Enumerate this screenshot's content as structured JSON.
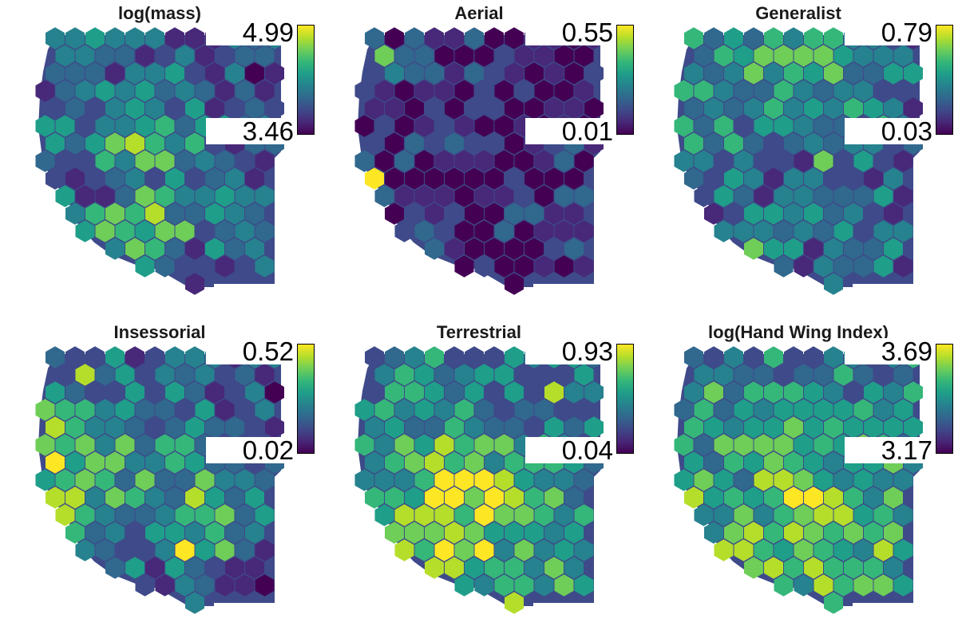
{
  "palette": [
    "#440154",
    "#482878",
    "#3e4a89",
    "#31688e",
    "#26828e",
    "#1f9e89",
    "#35b779",
    "#6ece58",
    "#b5de2b",
    "#fde725"
  ],
  "panels": [
    {
      "title": "log(mass)",
      "legend_max": "4.99",
      "legend_min": "3.46",
      "highlights": [
        [
          3,
          9,
          1
        ],
        [
          2,
          9,
          1
        ],
        [
          6,
          8,
          2
        ],
        [
          4,
          9,
          3
        ]
      ]
    },
    {
      "title": "Aerial",
      "legend_max": "0.55",
      "legend_min": "0.01",
      "highlights": [
        [
          1,
          1,
          7
        ],
        [
          1,
          8,
          9
        ]
      ]
    },
    {
      "title": "Generalist",
      "legend_max": "0.79",
      "legend_min": "0.03",
      "highlights": [
        [
          4,
          12,
          7
        ],
        [
          7,
          7,
          7
        ]
      ]
    },
    {
      "title": "Insessorial",
      "legend_max": "0.52",
      "legend_min": "0.02",
      "highlights": [
        [
          1,
          6,
          9
        ],
        [
          7,
          11,
          9
        ],
        [
          2,
          1,
          8
        ]
      ]
    },
    {
      "title": "Terrestrial",
      "legend_max": "0.93",
      "legend_min": "0.04",
      "highlights": [
        [
          6,
          7,
          9
        ],
        [
          4,
          6,
          8
        ],
        [
          10,
          2,
          8
        ]
      ]
    },
    {
      "title": "log(Hand Wing Index)",
      "legend_max": "3.69",
      "legend_min": "3.17",
      "highlights": [
        [
          2,
          2,
          7
        ],
        [
          1,
          8,
          8
        ],
        [
          6,
          7,
          7
        ]
      ]
    }
  ]
}
